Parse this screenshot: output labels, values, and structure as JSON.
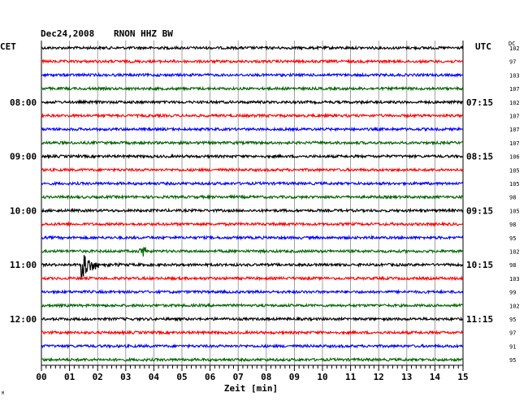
{
  "header": {
    "date": "Dec24,2008",
    "station": "RNON HHZ BW",
    "left_tz": "CET",
    "right_tz": "UTC",
    "dc_label": "DC",
    "corner_mark": "M"
  },
  "chart_data": {
    "type": "line",
    "title": "Dec24,2008   RNON HHZ BW",
    "xlabel": "Zeit [min]",
    "x_ticks": [
      "00",
      "01",
      "02",
      "03",
      "04",
      "05",
      "06",
      "07",
      "08",
      "09",
      "10",
      "11",
      "12",
      "13",
      "14",
      "15"
    ],
    "xlim": [
      0,
      15
    ],
    "trace_colors": [
      "#000000",
      "#ff0000",
      "#0000ff",
      "#006400"
    ],
    "left_hour_labels": [
      "08:00",
      "09:00",
      "10:00",
      "11:00",
      "12:00"
    ],
    "right_hour_labels": [
      "07:15",
      "08:15",
      "09:15",
      "10:15",
      "11:15"
    ],
    "first_hour_row": 4,
    "dc_values": [
      "102",
      "97",
      "103",
      "107",
      "102",
      "107",
      "107",
      "107",
      "106",
      "105",
      "105",
      "98",
      "105",
      "98",
      "95",
      "102",
      "98",
      "103",
      "99",
      "102",
      "95",
      "97",
      "91",
      "95"
    ],
    "events": [
      {
        "row": 16,
        "minute": 1.4,
        "type": "quake",
        "amplitude": "large"
      },
      {
        "row": 15,
        "minute": 3.6,
        "type": "spike",
        "amplitude": "medium"
      }
    ]
  }
}
